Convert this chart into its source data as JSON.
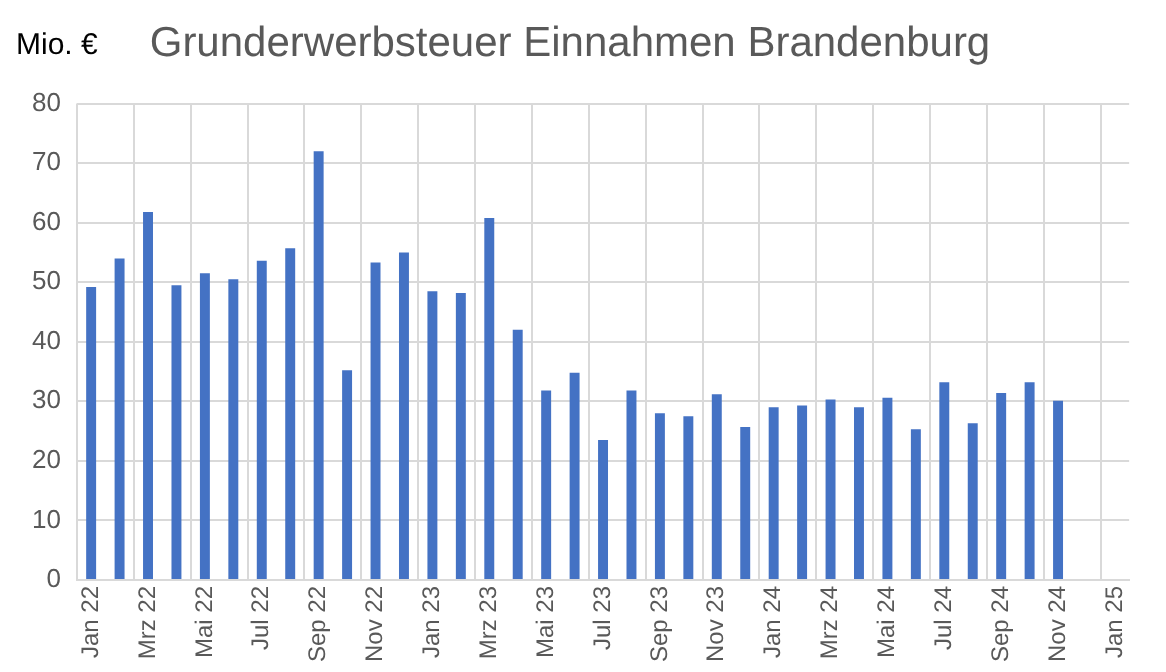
{
  "chart_data": {
    "type": "bar",
    "title": "Grunderwerbsteuer Einnahmen Brandenburg",
    "ylabel": "Mio. €",
    "categories": [
      "Jan 22",
      null,
      "Mrz 22",
      null,
      "Mai 22",
      null,
      "Jul 22",
      null,
      "Sep 22",
      null,
      "Nov 22",
      null,
      "Jan 23",
      null,
      "Mrz 23",
      null,
      "Mai 23",
      null,
      "Jul 23",
      null,
      "Sep 23",
      null,
      "Nov 23",
      null,
      "Jan 24",
      null,
      "Mrz 24",
      null,
      "Mai 24",
      null,
      "Jul 24",
      null,
      "Sep 24",
      null,
      "Nov 24",
      null,
      "Jan 25"
    ],
    "values": [
      49.2,
      54,
      61.8,
      49.5,
      51.5,
      50.5,
      53.6,
      55.7,
      72,
      35.2,
      53.3,
      55,
      48.5,
      48.2,
      60.8,
      42,
      31.8,
      34.8,
      23.5,
      31.8,
      28,
      27.5,
      31.2,
      25.7,
      29,
      29.3,
      30.3,
      29,
      30.6,
      25.3,
      33.2,
      26.3,
      31.4,
      33.2,
      30.1,
      null,
      null
    ],
    "color": "#4472c4",
    "ylim": [
      0,
      80
    ],
    "yticks": [
      0,
      10,
      20,
      30,
      40,
      50,
      60,
      70,
      80
    ],
    "grid": true,
    "legend": false
  }
}
